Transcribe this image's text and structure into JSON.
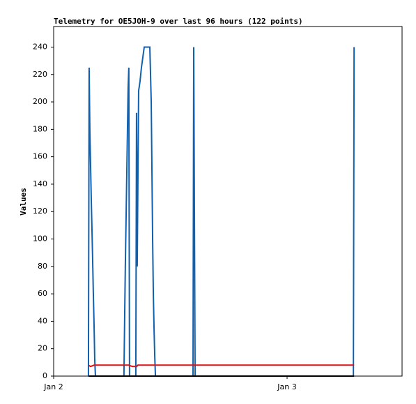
{
  "chart_data": {
    "type": "line",
    "title": "Telemetry for OE5JOH-9 over last 96 hours (122 points)",
    "y_label": "Values",
    "xlim": [
      0,
      1.4925
    ],
    "xticks": [
      {
        "value": 0,
        "label": "Jan 2"
      },
      {
        "value": 1,
        "label": "Jan 3"
      }
    ],
    "ylim": [
      0,
      255
    ],
    "yticks": [
      0,
      20,
      40,
      60,
      80,
      100,
      120,
      140,
      160,
      180,
      200,
      220,
      240
    ],
    "series": [
      {
        "color": "#1060b0",
        "x": [
          0.149,
          0.152,
          0.155,
          0.158,
          0.161,
          0.164,
          0.167,
          0.17,
          0.173,
          0.176,
          0.179,
          0.301,
          0.307,
          0.313,
          0.319,
          0.322,
          0.325,
          0.352,
          0.355,
          0.358,
          0.364,
          0.37,
          0.376,
          0.388,
          0.412,
          0.418,
          0.421,
          0.424,
          0.427,
          0.43,
          0.433,
          0.436,
          0.597,
          0.6,
          0.603,
          0.606,
          1.284,
          1.287
        ],
        "values": [
          0,
          225,
          180,
          155,
          130,
          108,
          85,
          60,
          38,
          12,
          0,
          0,
          80,
          145,
          210,
          225,
          0,
          0,
          192,
          80,
          208,
          215,
          225,
          240,
          240,
          200,
          150,
          100,
          60,
          35,
          15,
          0,
          0,
          240,
          120,
          0,
          0,
          240
        ]
      },
      {
        "color": "#e01010",
        "x": [
          0.149,
          0.158,
          0.173,
          0.322,
          0.337,
          0.355,
          0.361,
          1.287
        ],
        "values": [
          8,
          7,
          8,
          8,
          7,
          7,
          8,
          8
        ]
      },
      {
        "color": "#000000",
        "x": [
          0.149,
          1.287
        ],
        "values": [
          0,
          0
        ]
      }
    ]
  }
}
